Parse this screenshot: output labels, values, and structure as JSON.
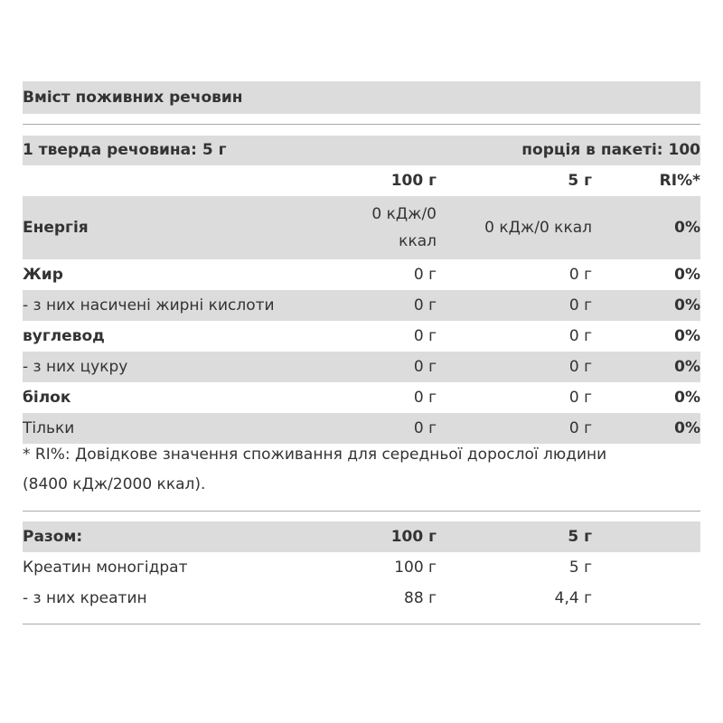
{
  "title": "Вміст поживних речовин",
  "serving": {
    "label": "1 тверда речовина: 5 г",
    "per_pack": "порція в пакеті: 100"
  },
  "header": [
    "100 г",
    "5 г",
    "RI%*"
  ],
  "rows": [
    [
      "Енергія",
      "0 кДж/0 ккал",
      "0 кДж/0 ккал",
      "0%"
    ],
    [
      "Жир",
      "0 г",
      "0 г",
      "0%"
    ],
    [
      "- з них насичені жирні кислоти",
      "0 г",
      "0 г",
      "0%"
    ],
    [
      "вуглевод",
      "0 г",
      "0 г",
      "0%"
    ],
    [
      "- з них цукру",
      "0 г",
      "0 г",
      "0%"
    ],
    [
      "білок",
      "0 г",
      "0 г",
      "0%"
    ],
    [
      "Тільки",
      "0 г",
      "0 г",
      "0%"
    ]
  ],
  "footnote": "* RI%: Довідкове значення споживання для середньої дорослої людини (8400 кДж/2000 ккал).",
  "totals": {
    "header": [
      "Разом:",
      "100 г",
      "5 г"
    ],
    "rows": [
      [
        "Креатин моногідрат",
        "100 г",
        "5 г"
      ],
      [
        "- з них креатин",
        "88 г",
        "4,4 г"
      ]
    ]
  }
}
